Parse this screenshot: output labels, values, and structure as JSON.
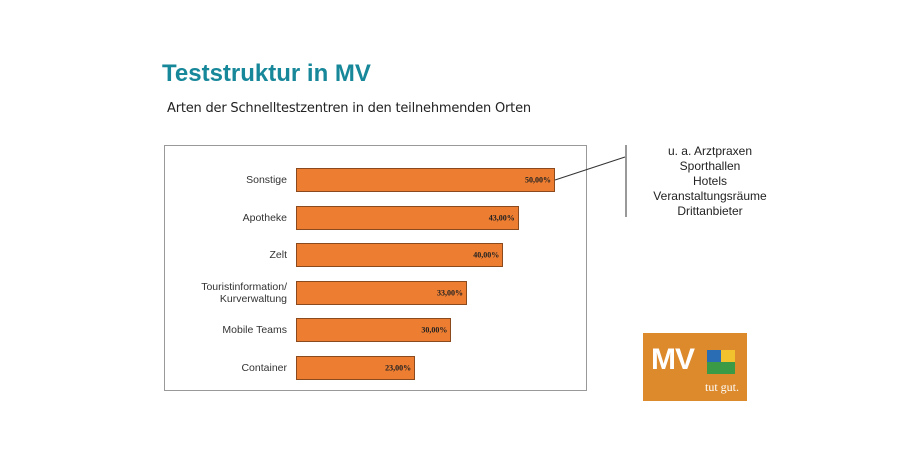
{
  "title": "Teststruktur in MV",
  "chart_data": {
    "type": "bar",
    "orientation": "horizontal",
    "subtitle": "Arten der Schnelltestzentren in den teilnehmenden Orten",
    "categories": [
      "Sonstige",
      "Apotheke",
      "Zelt",
      "Touristinformation/\nKurverwaltung",
      "Mobile Teams",
      "Container"
    ],
    "values": [
      50,
      43,
      40,
      33,
      30,
      23
    ],
    "value_labels": [
      "50,00%",
      "43,00%",
      "40,00%",
      "33,00%",
      "30,00%",
      "23,00%"
    ],
    "color": "#ed7d31",
    "annotation": {
      "lines": [
        "u. a. Arztpraxen",
        "Sporthallen",
        "Hotels",
        "Veranstaltungsräume",
        "Drittanbieter"
      ]
    }
  },
  "logo": {
    "text": "MV",
    "tagline": "tut gut."
  }
}
